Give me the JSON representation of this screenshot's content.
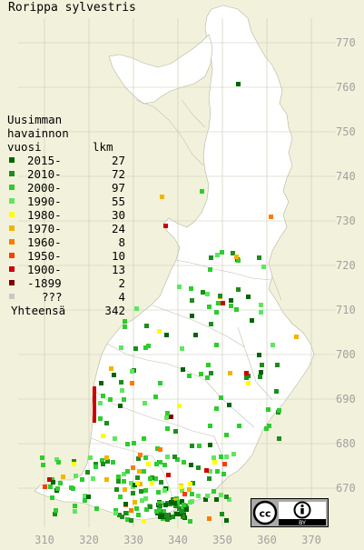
{
  "title": "Rorippa sylvestris",
  "legend": {
    "heading_lines": [
      "Uusimman",
      "havainnon",
      "vuosi"
    ],
    "count_heading": "lkm",
    "items": [
      {
        "label": "2015-",
        "count": "27",
        "color": "#006400"
      },
      {
        "label": "2010-",
        "count": "72",
        "color": "#1e8c1e"
      },
      {
        "label": "2000-",
        "count": "97",
        "color": "#2ecc2e"
      },
      {
        "label": "1990-",
        "count": "55",
        "color": "#5fe65f"
      },
      {
        "label": "1980-",
        "count": "30",
        "color": "#ffff00"
      },
      {
        "label": "1970-",
        "count": "24",
        "color": "#f2b400"
      },
      {
        "label": "1960-",
        "count": "8",
        "color": "#ff7a00"
      },
      {
        "label": "1950-",
        "count": "10",
        "color": "#ff3c00"
      },
      {
        "label": "1900-",
        "count": "13",
        "color": "#cc0000"
      },
      {
        "label": "-1899",
        "count": "2",
        "color": "#800000"
      },
      {
        "label": "???",
        "count": "4",
        "color": "#c8c8c8"
      }
    ],
    "total_label": "Yhteensä",
    "total_value": "342"
  },
  "axis": {
    "x_ticks": [
      "310",
      "320",
      "330",
      "340",
      "350",
      "360",
      "370"
    ],
    "y_ticks": [
      "770",
      "760",
      "750",
      "740",
      "730",
      "720",
      "710",
      "700",
      "690",
      "680",
      "670"
    ]
  },
  "license": {
    "cc": "cc",
    "by": "BY"
  },
  "colors": {
    "background": "#f2f2dc",
    "land": "#ffffff",
    "grid": "#c8c8b4",
    "tick_text": "#a0a0a0"
  }
}
